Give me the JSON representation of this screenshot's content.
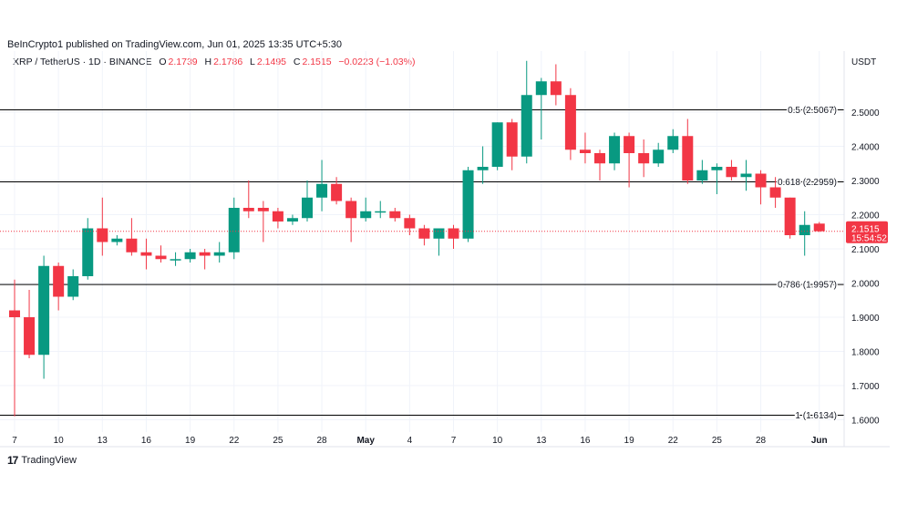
{
  "header": {
    "published": "BeInCrypto1 published on TradingView.com, Jun 01, 2025 13:35 UTC+5:30"
  },
  "legend": {
    "symbol": "XRP / TetherUS · 1D · BINANCE",
    "o_label": "O",
    "o_value": "2.1739",
    "h_label": "H",
    "h_value": "2.1786",
    "l_label": "L",
    "l_value": "2.1495",
    "c_label": "C",
    "c_value": "2.1515",
    "change": "−0.0223 (−1.03%)"
  },
  "currency": "USDT",
  "footer": {
    "brand": "TradingView"
  },
  "colors": {
    "up": "#089981",
    "down": "#f23645",
    "grid": "#f0f3fa",
    "line": "#000000",
    "text": "#131722"
  },
  "chart_data": {
    "type": "candlestick",
    "ylim": [
      1.58,
      2.62
    ],
    "y_ticks": [
      "1.6000",
      "1.7000",
      "1.8000",
      "1.9000",
      "2.0000",
      "2.1000",
      "2.2000",
      "2.3000",
      "2.4000",
      "2.5000"
    ],
    "x_ticks": [
      {
        "label": "7",
        "date": "2025-04-07"
      },
      {
        "label": "10",
        "date": "2025-04-10"
      },
      {
        "label": "13",
        "date": "2025-04-13"
      },
      {
        "label": "16",
        "date": "2025-04-16"
      },
      {
        "label": "19",
        "date": "2025-04-19"
      },
      {
        "label": "22",
        "date": "2025-04-22"
      },
      {
        "label": "25",
        "date": "2025-04-25"
      },
      {
        "label": "28",
        "date": "2025-04-28"
      },
      {
        "label": "May",
        "date": "2025-05-01"
      },
      {
        "label": "4",
        "date": "2025-05-04"
      },
      {
        "label": "7",
        "date": "2025-05-07"
      },
      {
        "label": "10",
        "date": "2025-05-10"
      },
      {
        "label": "13",
        "date": "2025-05-13"
      },
      {
        "label": "16",
        "date": "2025-05-16"
      },
      {
        "label": "19",
        "date": "2025-05-19"
      },
      {
        "label": "22",
        "date": "2025-05-22"
      },
      {
        "label": "25",
        "date": "2025-05-25"
      },
      {
        "label": "28",
        "date": "2025-05-28"
      },
      {
        "label": "Jun",
        "date": "2025-06-01"
      }
    ],
    "fib_levels": [
      {
        "label": "0.5 (2.5067)",
        "value": 2.5067
      },
      {
        "label": "0.618 (2.2959)",
        "value": 2.2959
      },
      {
        "label": "0.786 (1.9957)",
        "value": 1.9957
      },
      {
        "label": "1 (1.6134)",
        "value": 1.6134
      }
    ],
    "current_price": {
      "value": 2.1515,
      "label": "2.1515",
      "countdown": "15:54:52"
    },
    "candles": [
      {
        "date": "2025-04-07",
        "o": 1.92,
        "h": 2.01,
        "l": 1.61,
        "c": 1.9
      },
      {
        "date": "2025-04-08",
        "o": 1.9,
        "h": 1.98,
        "l": 1.78,
        "c": 1.79
      },
      {
        "date": "2025-04-09",
        "o": 1.79,
        "h": 2.08,
        "l": 1.72,
        "c": 2.05
      },
      {
        "date": "2025-04-10",
        "o": 2.05,
        "h": 2.06,
        "l": 1.92,
        "c": 1.96
      },
      {
        "date": "2025-04-11",
        "o": 1.96,
        "h": 2.04,
        "l": 1.95,
        "c": 2.02
      },
      {
        "date": "2025-04-12",
        "o": 2.02,
        "h": 2.19,
        "l": 2.01,
        "c": 2.16
      },
      {
        "date": "2025-04-13",
        "o": 2.16,
        "h": 2.25,
        "l": 2.08,
        "c": 2.12
      },
      {
        "date": "2025-04-14",
        "o": 2.12,
        "h": 2.14,
        "l": 2.11,
        "c": 2.13
      },
      {
        "date": "2025-04-15",
        "o": 2.13,
        "h": 2.19,
        "l": 2.08,
        "c": 2.09
      },
      {
        "date": "2025-04-16",
        "o": 2.09,
        "h": 2.13,
        "l": 2.04,
        "c": 2.08
      },
      {
        "date": "2025-04-17",
        "o": 2.08,
        "h": 2.11,
        "l": 2.06,
        "c": 2.07
      },
      {
        "date": "2025-04-18",
        "o": 2.07,
        "h": 2.09,
        "l": 2.05,
        "c": 2.07
      },
      {
        "date": "2025-04-19",
        "o": 2.07,
        "h": 2.1,
        "l": 2.06,
        "c": 2.09
      },
      {
        "date": "2025-04-20",
        "o": 2.09,
        "h": 2.1,
        "l": 2.04,
        "c": 2.08
      },
      {
        "date": "2025-04-21",
        "o": 2.08,
        "h": 2.12,
        "l": 2.06,
        "c": 2.09
      },
      {
        "date": "2025-04-22",
        "o": 2.09,
        "h": 2.25,
        "l": 2.07,
        "c": 2.22
      },
      {
        "date": "2025-04-23",
        "o": 2.22,
        "h": 2.3,
        "l": 2.19,
        "c": 2.21
      },
      {
        "date": "2025-04-24",
        "o": 2.22,
        "h": 2.24,
        "l": 2.12,
        "c": 2.21
      },
      {
        "date": "2025-04-25",
        "o": 2.21,
        "h": 2.22,
        "l": 2.16,
        "c": 2.18
      },
      {
        "date": "2025-04-26",
        "o": 2.18,
        "h": 2.2,
        "l": 2.17,
        "c": 2.19
      },
      {
        "date": "2025-04-27",
        "o": 2.19,
        "h": 2.3,
        "l": 2.18,
        "c": 2.25
      },
      {
        "date": "2025-04-28",
        "o": 2.25,
        "h": 2.36,
        "l": 2.21,
        "c": 2.29
      },
      {
        "date": "2025-04-29",
        "o": 2.29,
        "h": 2.31,
        "l": 2.23,
        "c": 2.24
      },
      {
        "date": "2025-04-30",
        "o": 2.24,
        "h": 2.25,
        "l": 2.12,
        "c": 2.19
      },
      {
        "date": "2025-05-01",
        "o": 2.19,
        "h": 2.25,
        "l": 2.18,
        "c": 2.21
      },
      {
        "date": "2025-05-02",
        "o": 2.21,
        "h": 2.24,
        "l": 2.19,
        "c": 2.21
      },
      {
        "date": "2025-05-03",
        "o": 2.21,
        "h": 2.22,
        "l": 2.18,
        "c": 2.19
      },
      {
        "date": "2025-05-04",
        "o": 2.19,
        "h": 2.2,
        "l": 2.14,
        "c": 2.16
      },
      {
        "date": "2025-05-05",
        "o": 2.16,
        "h": 2.17,
        "l": 2.11,
        "c": 2.13
      },
      {
        "date": "2025-05-06",
        "o": 2.13,
        "h": 2.16,
        "l": 2.08,
        "c": 2.16
      },
      {
        "date": "2025-05-07",
        "o": 2.16,
        "h": 2.17,
        "l": 2.1,
        "c": 2.13
      },
      {
        "date": "2025-05-08",
        "o": 2.13,
        "h": 2.34,
        "l": 2.12,
        "c": 2.33
      },
      {
        "date": "2025-05-09",
        "o": 2.33,
        "h": 2.4,
        "l": 2.29,
        "c": 2.34
      },
      {
        "date": "2025-05-10",
        "o": 2.34,
        "h": 2.47,
        "l": 2.33,
        "c": 2.47
      },
      {
        "date": "2025-05-11",
        "o": 2.47,
        "h": 2.48,
        "l": 2.33,
        "c": 2.37
      },
      {
        "date": "2025-05-12",
        "o": 2.37,
        "h": 2.65,
        "l": 2.35,
        "c": 2.55
      },
      {
        "date": "2025-05-13",
        "o": 2.55,
        "h": 2.6,
        "l": 2.42,
        "c": 2.59
      },
      {
        "date": "2025-05-14",
        "o": 2.59,
        "h": 2.64,
        "l": 2.52,
        "c": 2.55
      },
      {
        "date": "2025-05-15",
        "o": 2.55,
        "h": 2.57,
        "l": 2.36,
        "c": 2.39
      },
      {
        "date": "2025-05-16",
        "o": 2.39,
        "h": 2.44,
        "l": 2.35,
        "c": 2.38
      },
      {
        "date": "2025-05-17",
        "o": 2.38,
        "h": 2.39,
        "l": 2.3,
        "c": 2.35
      },
      {
        "date": "2025-05-18",
        "o": 2.35,
        "h": 2.44,
        "l": 2.33,
        "c": 2.43
      },
      {
        "date": "2025-05-19",
        "o": 2.43,
        "h": 2.44,
        "l": 2.28,
        "c": 2.38
      },
      {
        "date": "2025-05-20",
        "o": 2.38,
        "h": 2.42,
        "l": 2.31,
        "c": 2.35
      },
      {
        "date": "2025-05-21",
        "o": 2.35,
        "h": 2.41,
        "l": 2.34,
        "c": 2.39
      },
      {
        "date": "2025-05-22",
        "o": 2.39,
        "h": 2.45,
        "l": 2.38,
        "c": 2.43
      },
      {
        "date": "2025-05-23",
        "o": 2.43,
        "h": 2.48,
        "l": 2.29,
        "c": 2.3
      },
      {
        "date": "2025-05-24",
        "o": 2.3,
        "h": 2.36,
        "l": 2.29,
        "c": 2.33
      },
      {
        "date": "2025-05-25",
        "o": 2.33,
        "h": 2.35,
        "l": 2.26,
        "c": 2.34
      },
      {
        "date": "2025-05-26",
        "o": 2.34,
        "h": 2.36,
        "l": 2.3,
        "c": 2.31
      },
      {
        "date": "2025-05-27",
        "o": 2.31,
        "h": 2.36,
        "l": 2.27,
        "c": 2.32
      },
      {
        "date": "2025-05-28",
        "o": 2.32,
        "h": 2.33,
        "l": 2.23,
        "c": 2.28
      },
      {
        "date": "2025-05-29",
        "o": 2.28,
        "h": 2.31,
        "l": 2.22,
        "c": 2.25
      },
      {
        "date": "2025-05-30",
        "o": 2.25,
        "h": 2.25,
        "l": 2.13,
        "c": 2.14
      },
      {
        "date": "2025-05-31",
        "o": 2.14,
        "h": 2.21,
        "l": 2.08,
        "c": 2.17
      },
      {
        "date": "2025-06-01",
        "o": 2.1739,
        "h": 2.1786,
        "l": 2.1495,
        "c": 2.1515
      }
    ]
  }
}
